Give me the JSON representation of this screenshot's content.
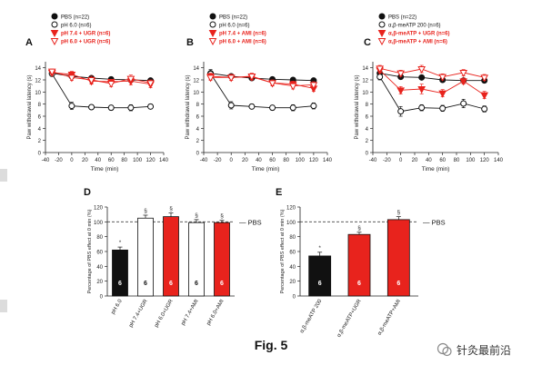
{
  "figure": {
    "caption": "Fig. 5",
    "watermark": "针灸最前沿"
  },
  "colors": {
    "black": "#111111",
    "red": "#e8231d",
    "open": "#ffffff",
    "axis": "#222222",
    "gray": "#555555"
  },
  "chart_data": [
    {
      "panel": "A",
      "type": "line",
      "xlabel": "Time (min)",
      "ylabel": "Paw withdrawal latency (s)",
      "xlim": [
        -40,
        140
      ],
      "ylim": [
        0,
        15
      ],
      "xticks": [
        -40,
        -20,
        0,
        20,
        40,
        60,
        80,
        100,
        120,
        140
      ],
      "yticks": [
        0,
        2,
        4,
        6,
        8,
        10,
        12,
        14
      ],
      "x": [
        -30,
        0,
        30,
        60,
        90,
        120
      ],
      "legend": [
        "PBS (n=22)",
        "pH 6.0 (n=6)",
        "pH 7.4 + UGR (n=6)",
        "pH 6.0 + UGR (n=6)"
      ],
      "series": [
        {
          "name": "PBS (n=22)",
          "marker": "circle-filled",
          "color": "#111111",
          "values": [
            13.1,
            12.6,
            12.3,
            12.1,
            12.0,
            11.9
          ],
          "err": [
            0.3,
            0.3,
            0.3,
            0.3,
            0.3,
            0.3
          ]
        },
        {
          "name": "pH 6.0 (n=6)",
          "marker": "circle-open",
          "color": "#111111",
          "values": [
            13.0,
            7.7,
            7.5,
            7.4,
            7.4,
            7.6
          ],
          "err": [
            0.4,
            0.6,
            0.4,
            0.4,
            0.5,
            0.4
          ]
        },
        {
          "name": "pH 7.4 + UGR (n=6)",
          "marker": "triangle-down-filled",
          "color": "#e8231d",
          "values": [
            13.2,
            12.9,
            11.8,
            11.7,
            11.8,
            11.3
          ],
          "err": [
            0.4,
            0.5,
            0.5,
            0.4,
            0.6,
            0.6
          ]
        },
        {
          "name": "pH 6.0 + UGR (n=6)",
          "marker": "triangle-down-open",
          "color": "#e8231d",
          "values": [
            13.4,
            12.4,
            12.0,
            11.4,
            12.2,
            11.5
          ],
          "err": [
            0.4,
            0.5,
            0.6,
            0.5,
            0.6,
            0.5
          ]
        }
      ]
    },
    {
      "panel": "B",
      "type": "line",
      "xlabel": "Time (min)",
      "ylabel": "Paw withdrawal latency (s)",
      "xlim": [
        -40,
        140
      ],
      "ylim": [
        0,
        15
      ],
      "xticks": [
        -40,
        -20,
        0,
        20,
        40,
        60,
        80,
        100,
        120,
        140
      ],
      "yticks": [
        0,
        2,
        4,
        6,
        8,
        10,
        12,
        14
      ],
      "x": [
        -30,
        0,
        30,
        60,
        90,
        120
      ],
      "legend": [
        "PBS (n=22)",
        "pH 6.0 (n=6)",
        "pH 7.4 + AMI (n=6)",
        "pH 6.0 + AMI (n=6)"
      ],
      "series": [
        {
          "name": "PBS (n=22)",
          "marker": "circle-filled",
          "color": "#111111",
          "values": [
            13.1,
            12.6,
            12.3,
            12.1,
            12.0,
            11.9
          ],
          "err": [
            0.3,
            0.3,
            0.3,
            0.3,
            0.3,
            0.3
          ]
        },
        {
          "name": "pH 6.0 (n=6)",
          "marker": "circle-open",
          "color": "#111111",
          "values": [
            13.0,
            7.8,
            7.6,
            7.4,
            7.4,
            7.7
          ],
          "err": [
            0.7,
            0.6,
            0.4,
            0.4,
            0.5,
            0.5
          ]
        },
        {
          "name": "pH 7.4 + AMI (n=6)",
          "marker": "triangle-down-filled",
          "color": "#e8231d",
          "values": [
            12.6,
            12.4,
            12.5,
            11.5,
            11.3,
            10.6
          ],
          "err": [
            0.5,
            0.5,
            0.5,
            0.4,
            0.5,
            0.5
          ]
        },
        {
          "name": "pH 6.0 + AMI (n=6)",
          "marker": "triangle-down-open",
          "color": "#e8231d",
          "values": [
            12.4,
            12.4,
            12.6,
            11.5,
            11.0,
            11.2
          ],
          "err": [
            0.5,
            0.5,
            0.5,
            0.5,
            0.5,
            0.5
          ]
        }
      ]
    },
    {
      "panel": "C",
      "type": "line",
      "xlabel": "Time (min)",
      "ylabel": "Paw withdrawal latency (s)",
      "xlim": [
        -40,
        140
      ],
      "ylim": [
        0,
        15
      ],
      "xticks": [
        -40,
        -20,
        0,
        20,
        40,
        60,
        80,
        100,
        120,
        140
      ],
      "yticks": [
        0,
        2,
        4,
        6,
        8,
        10,
        12,
        14
      ],
      "x": [
        -30,
        0,
        30,
        60,
        90,
        120
      ],
      "legend": [
        "PBS (n=22)",
        "α,β-meATP 200 (n=6)",
        "α,β-meATP + UGR (n=6)",
        "α,β-meATP + AMI (n=6)"
      ],
      "series": [
        {
          "name": "PBS (n=22)",
          "marker": "circle-filled",
          "color": "#111111",
          "values": [
            13.1,
            12.5,
            12.4,
            12.0,
            11.9,
            11.9
          ],
          "err": [
            0.3,
            0.3,
            0.3,
            0.3,
            0.3,
            0.3
          ]
        },
        {
          "name": "α,β-meATP 200 (n=6)",
          "marker": "circle-open",
          "color": "#111111",
          "values": [
            12.5,
            6.8,
            7.4,
            7.3,
            8.1,
            7.2
          ],
          "err": [
            0.5,
            0.8,
            0.5,
            0.5,
            0.7,
            0.5
          ]
        },
        {
          "name": "α,β-meATP + UGR (n=6)",
          "marker": "triangle-down-filled",
          "color": "#e8231d",
          "values": [
            13.6,
            10.3,
            10.5,
            9.8,
            11.8,
            9.5
          ],
          "err": [
            0.5,
            0.6,
            0.8,
            0.6,
            0.5,
            0.6
          ]
        },
        {
          "name": "α,β-meATP + AMI (n=6)",
          "marker": "triangle-down-open",
          "color": "#e8231d",
          "values": [
            13.9,
            13.1,
            13.8,
            12.5,
            13.2,
            12.4
          ],
          "err": [
            0.5,
            0.5,
            0.6,
            0.5,
            0.5,
            0.5
          ]
        }
      ]
    },
    {
      "panel": "D",
      "type": "bar",
      "ylabel": "Percentage of PBS effect at 0 min (%)",
      "ylim": [
        0,
        120
      ],
      "yticks": [
        0,
        20,
        40,
        60,
        80,
        100,
        120
      ],
      "reference": {
        "value": 100,
        "label": "PBS"
      },
      "categories": [
        "pH 6.0",
        "pH 7.4+UGR",
        "pH 6.0+UGR",
        "pH 7.4+AMI",
        "pH 6.0+AMI"
      ],
      "values": [
        62,
        105,
        107,
        99,
        99
      ],
      "err": [
        4,
        4,
        5,
        4,
        3
      ],
      "n": [
        "6",
        "6",
        "6",
        "6",
        "6"
      ],
      "fills": [
        "#111111",
        "#ffffff",
        "#e8231d",
        "#ffffff",
        "#e8231d"
      ],
      "marks": [
        "*",
        "§",
        "§",
        "§",
        "§"
      ]
    },
    {
      "panel": "E",
      "type": "bar",
      "ylabel": "Percentage of PBS effect at 0 min (%)",
      "ylim": [
        0,
        120
      ],
      "yticks": [
        0,
        20,
        40,
        60,
        80,
        100,
        120
      ],
      "reference": {
        "value": 100,
        "label": "PBS"
      },
      "categories": [
        "α,β-meATP 200",
        "α,β-meATP+UGR",
        "α,β-meATP+AMI"
      ],
      "values": [
        54,
        83,
        103
      ],
      "err": [
        5,
        3,
        4
      ],
      "n": [
        "6",
        "6",
        "6"
      ],
      "fills": [
        "#111111",
        "#e8231d",
        "#e8231d"
      ],
      "marks": [
        "*",
        "§",
        "§"
      ]
    }
  ]
}
